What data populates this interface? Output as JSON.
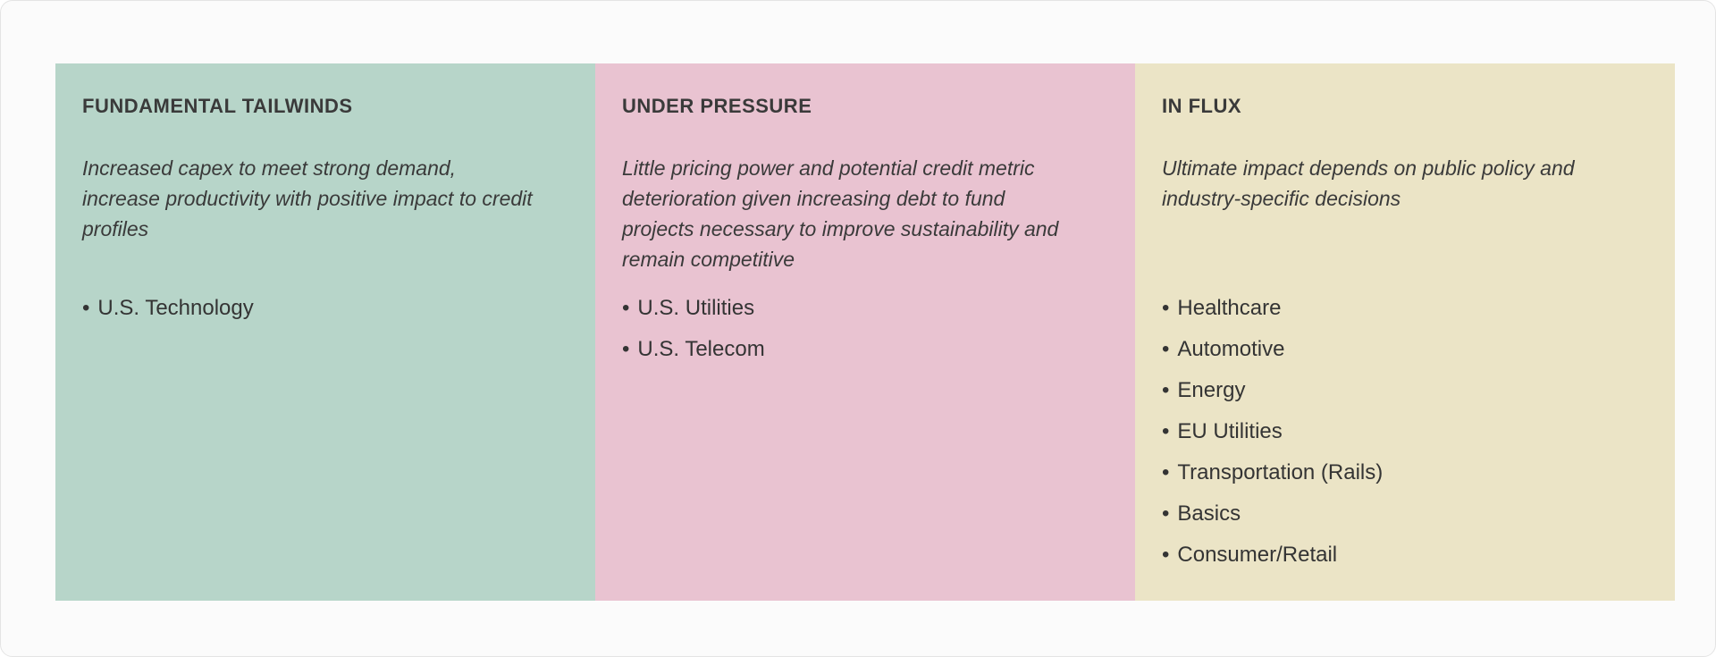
{
  "panel": {
    "columns": [
      {
        "id": "fundamental-tailwinds",
        "title": "FUNDAMENTAL TAILWINDS",
        "description": "Increased capex to meet strong demand, increase productivity with positive impact to credit profiles",
        "items": [
          "U.S. Technology"
        ],
        "bg": "#b7d5c9"
      },
      {
        "id": "under-pressure",
        "title": "UNDER PRESSURE",
        "description": "Little pricing power and potential credit metric deterioration given increasing debt to fund projects necessary to improve sustainability and remain competitive",
        "items": [
          "U.S. Utilities",
          "U.S. Telecom"
        ],
        "bg": "#e9c3d1"
      },
      {
        "id": "in-flux",
        "title": "IN FLUX",
        "description": "Ultimate impact depends on public policy and industry-specific decisions",
        "items": [
          "Healthcare",
          "Automotive",
          "Energy",
          "EU Utilities",
          "Transportation (Rails)",
          "Basics",
          "Consumer/Retail"
        ],
        "bg": "#ebe4c6"
      }
    ]
  },
  "colors": {
    "text": "#3a3a3a",
    "card_background": "#fbfbfb",
    "card_border": "#e4e4e4",
    "column_tailwinds_bg": "#b7d5c9",
    "column_pressure_bg": "#e9c3d1",
    "column_influx_bg": "#ebe4c6"
  }
}
